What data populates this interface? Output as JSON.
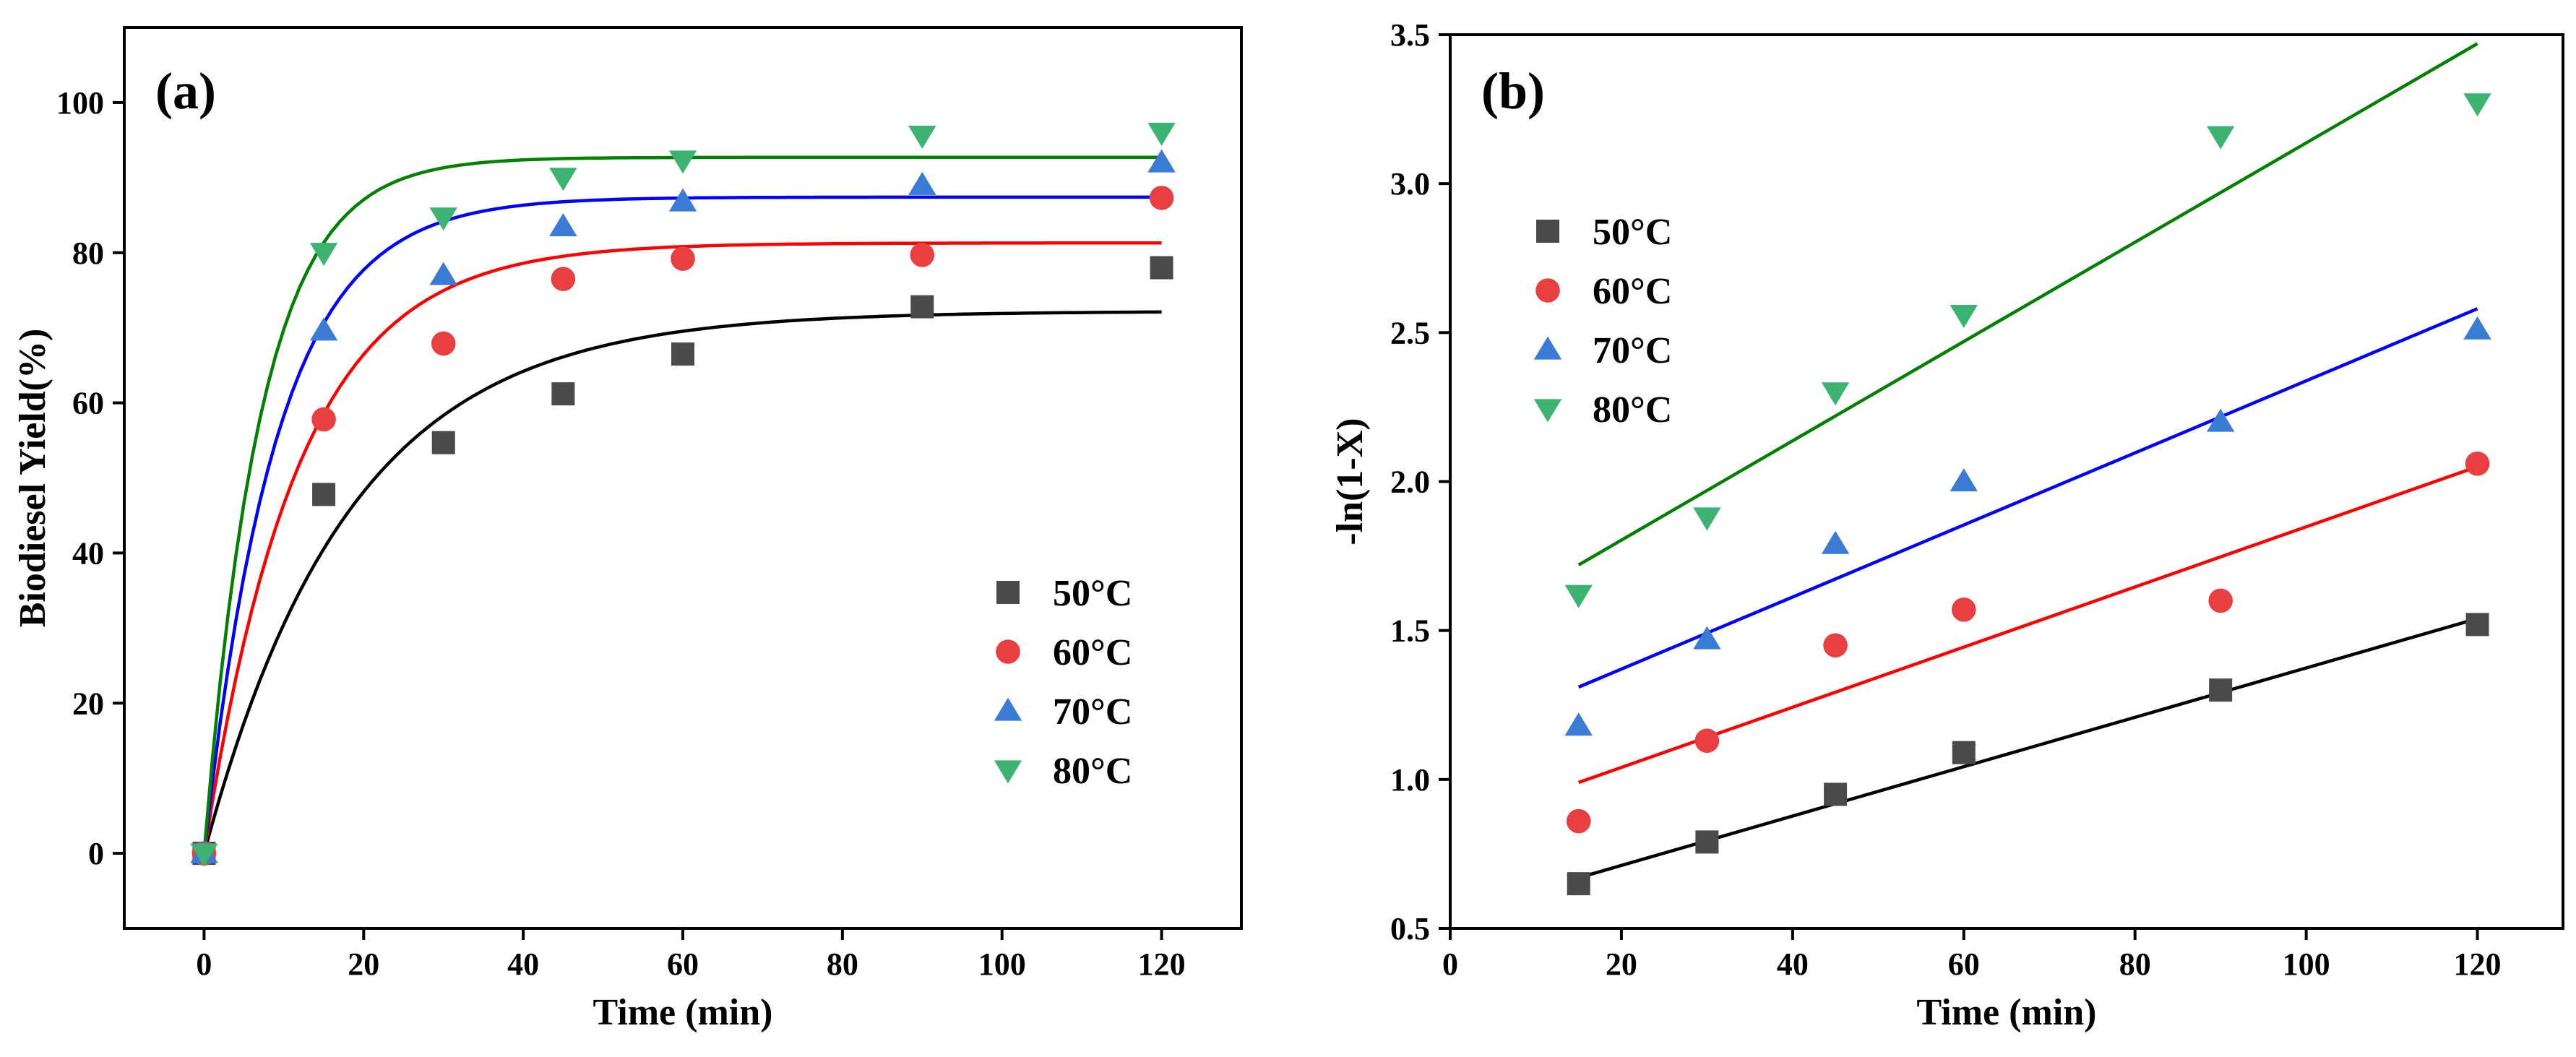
{
  "chart_data": [
    {
      "type": "scatter",
      "panel_label": "(a)",
      "xlabel": "Time (min)",
      "ylabel": "Biodiesel Yield(%)",
      "xlim": [
        -10,
        130
      ],
      "ylim": [
        -10,
        110
      ],
      "xticks": [
        0,
        20,
        40,
        60,
        80,
        100,
        120
      ],
      "yticks": [
        0,
        20,
        40,
        60,
        80,
        100
      ],
      "legend_position": "bottom-right",
      "x": [
        0,
        15,
        30,
        45,
        60,
        90,
        120
      ],
      "series": [
        {
          "name": "50°C",
          "marker": "square",
          "color": "#4a4a4a",
          "line_color": "#000000",
          "values": [
            0,
            47.8,
            54.7,
            61.2,
            66.5,
            72.8,
            78.0
          ],
          "fit": {
            "model": "first-order",
            "ymax": 72.2,
            "k": 0.055
          }
        },
        {
          "name": "60°C",
          "marker": "circle",
          "color": "#e84040",
          "line_color": "#ff0000",
          "values": [
            0,
            57.8,
            67.9,
            76.5,
            79.2,
            79.7,
            87.3
          ],
          "fit": {
            "model": "first-order",
            "ymax": 81.3,
            "k": 0.085
          }
        },
        {
          "name": "70°C",
          "marker": "triangle-up",
          "color": "#3a7bd5",
          "line_color": "#0000ff",
          "values": [
            0,
            69.6,
            77.0,
            83.5,
            86.8,
            89.0,
            92.0
          ],
          "fit": {
            "model": "first-order",
            "ymax": 87.4,
            "k": 0.11
          }
        },
        {
          "name": "80°C",
          "marker": "triangle-down",
          "color": "#3cb371",
          "line_color": "#008000",
          "values": [
            0,
            80.0,
            84.7,
            90.0,
            92.3,
            95.6,
            96.0
          ],
          "fit": {
            "model": "first-order",
            "ymax": 92.7,
            "k": 0.14
          }
        }
      ]
    },
    {
      "type": "scatter",
      "panel_label": "(b)",
      "xlabel": "Time (min)",
      "ylabel": "-ln(1-X)",
      "xlim": [
        0,
        130
      ],
      "ylim": [
        0.5,
        3.5
      ],
      "xticks": [
        0,
        20,
        40,
        60,
        80,
        100,
        120
      ],
      "yticks": [
        "0.5",
        "1.0",
        "1.5",
        "2.0",
        "2.5",
        "3.0",
        "3.5"
      ],
      "legend_position": "top-left",
      "x": [
        15,
        30,
        45,
        60,
        90,
        120
      ],
      "series": [
        {
          "name": "50°C",
          "marker": "square",
          "color": "#4a4a4a",
          "line_color": "#000000",
          "values": [
            0.65,
            0.79,
            0.95,
            1.09,
            1.3,
            1.52
          ],
          "fit": {
            "model": "linear",
            "x_start": 15,
            "x_end": 120,
            "y_start": 0.67,
            "y_end": 1.54
          }
        },
        {
          "name": "60°C",
          "marker": "circle",
          "color": "#e84040",
          "line_color": "#ff0000",
          "values": [
            0.86,
            1.13,
            1.45,
            1.57,
            1.6,
            2.06
          ],
          "fit": {
            "model": "linear",
            "x_start": 15,
            "x_end": 120,
            "y_start": 0.99,
            "y_end": 2.05
          }
        },
        {
          "name": "70°C",
          "marker": "triangle-up",
          "color": "#3a7bd5",
          "line_color": "#0000ff",
          "values": [
            1.18,
            1.47,
            1.79,
            2.0,
            2.2,
            2.51
          ],
          "fit": {
            "model": "linear",
            "x_start": 15,
            "x_end": 120,
            "y_start": 1.31,
            "y_end": 2.58
          }
        },
        {
          "name": "80°C",
          "marker": "triangle-down",
          "color": "#3cb371",
          "line_color": "#008000",
          "values": [
            1.62,
            1.88,
            2.3,
            2.56,
            3.16,
            3.27
          ],
          "fit": {
            "model": "linear",
            "x_start": 15,
            "x_end": 120,
            "y_start": 1.72,
            "y_end": 3.47
          }
        }
      ]
    }
  ]
}
